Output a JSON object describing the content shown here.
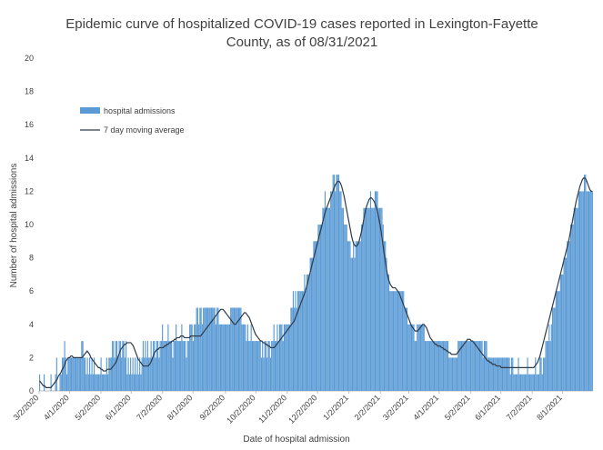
{
  "chart_data": {
    "type": "bar",
    "title_line1": "Epidemic curve of hospitalized COVID-19 cases reported in Lexington-Fayette",
    "title_line2": "County, as of 08/31/2021",
    "xlabel": "Date of hospital admission",
    "ylabel": "Number of hospital admissions",
    "ylim": [
      0,
      20
    ],
    "yticks": [
      "0",
      "2",
      "4",
      "6",
      "8",
      "10",
      "12",
      "14",
      "16",
      "18",
      "20"
    ],
    "x_start": "2020-03-02",
    "x_end": "2021-08-31",
    "xtick_labels": [
      "3/2/2020",
      "4/1/2020",
      "5/2/2020",
      "6/1/2020",
      "7/2/2020",
      "8/1/2020",
      "9/2/2020",
      "10/2/2020",
      "11/2/2020",
      "12/2/2020",
      "1/2/2021",
      "2/2/2021",
      "3/2/2021",
      "4/1/2021",
      "5/2/2021",
      "6/1/2021",
      "7/2/2021",
      "8/1/2021"
    ],
    "legend": {
      "position": "top-left",
      "bar_label": "hospital admissions",
      "line_label": "7 day moving average"
    },
    "series": [
      {
        "name": "hospital admissions",
        "kind": "bar",
        "color": "#5b9bd5",
        "values": [
          1,
          0,
          0,
          0,
          1,
          0,
          0,
          0,
          0,
          0,
          1,
          0,
          0,
          0,
          1,
          2,
          0,
          0,
          1,
          1,
          2,
          2,
          3,
          2,
          1,
          2,
          2,
          2,
          2,
          2,
          2,
          2,
          2,
          2,
          2,
          2,
          2,
          3,
          3,
          2,
          2,
          1,
          2,
          1,
          2,
          1,
          2,
          1,
          2,
          1,
          1,
          1,
          1,
          1,
          2,
          1,
          1,
          1,
          1,
          2,
          1,
          2,
          2,
          2,
          3,
          3,
          2,
          3,
          3,
          2,
          3,
          3,
          2,
          3,
          3,
          2,
          3,
          1,
          2,
          1,
          2,
          1,
          2,
          1,
          2,
          1,
          2,
          1,
          2,
          1,
          2,
          3,
          2,
          3,
          2,
          3,
          2,
          2,
          3,
          2,
          3,
          3,
          2,
          3,
          3,
          2,
          3,
          3,
          4,
          3,
          3,
          3,
          3,
          4,
          3,
          3,
          3,
          2,
          3,
          3,
          4,
          3,
          3,
          3,
          3,
          4,
          3,
          3,
          3,
          2,
          3,
          3,
          4,
          4,
          4,
          3,
          4,
          4,
          5,
          5,
          4,
          5,
          5,
          4,
          5,
          5,
          5,
          5,
          5,
          5,
          5,
          5,
          5,
          5,
          5,
          4,
          5,
          5,
          4,
          4,
          4,
          4,
          4,
          4,
          4,
          4,
          4,
          4,
          5,
          5,
          5,
          5,
          5,
          5,
          5,
          5,
          5,
          5,
          4,
          4,
          4,
          4,
          3,
          4,
          3,
          3,
          4,
          3,
          3,
          3,
          3,
          3,
          3,
          3,
          3,
          2,
          3,
          2,
          3,
          3,
          2,
          3,
          3,
          2,
          3,
          3,
          4,
          3,
          3,
          4,
          3,
          4,
          4,
          4,
          3,
          4,
          4,
          4,
          4,
          4,
          4,
          5,
          5,
          6,
          5,
          6,
          5,
          6,
          6,
          6,
          6,
          6,
          6,
          7,
          6,
          7,
          7,
          7,
          8,
          8,
          8,
          9,
          9,
          9,
          9,
          10,
          10,
          10,
          10,
          11,
          11,
          12,
          11,
          11,
          11,
          11,
          12,
          12,
          13,
          13,
          12,
          13,
          13,
          13,
          12,
          12,
          11,
          11,
          10,
          10,
          10,
          9,
          9,
          9,
          8,
          8,
          9,
          8,
          9,
          9,
          9,
          9,
          9,
          10,
          10,
          11,
          11,
          11,
          11,
          11,
          11,
          12,
          11,
          11,
          11,
          12,
          12,
          12,
          11,
          11,
          11,
          11,
          10,
          9,
          9,
          8,
          7,
          7,
          6,
          6,
          6,
          6,
          6,
          6,
          6,
          6,
          6,
          6,
          6,
          6,
          6,
          5,
          5,
          5,
          4,
          4,
          4,
          4,
          4,
          4,
          3,
          3,
          4,
          4,
          4,
          4,
          4,
          4,
          4,
          3,
          3,
          3,
          3,
          3,
          3,
          3,
          3,
          3,
          3,
          3,
          3,
          3,
          3,
          3,
          3,
          3,
          3,
          3,
          3,
          3,
          2,
          2,
          2,
          2,
          2,
          2,
          2,
          2,
          3,
          3,
          3,
          3,
          3,
          3,
          3,
          3,
          3,
          3,
          3,
          3,
          3,
          3,
          3,
          3,
          3,
          3,
          3,
          3,
          3,
          3,
          2,
          3,
          3,
          3,
          2,
          2,
          2,
          2,
          2,
          2,
          2,
          2,
          2,
          2,
          2,
          2,
          2,
          2,
          2,
          2,
          2,
          2,
          2,
          2,
          1,
          2,
          2,
          1,
          1,
          1,
          1,
          2,
          1,
          1,
          1,
          1,
          1,
          1,
          1,
          2,
          1,
          1,
          1,
          1,
          1,
          1,
          2,
          1,
          1,
          1,
          2,
          2,
          1,
          2,
          2,
          3,
          3,
          3,
          4,
          3,
          4,
          5,
          5,
          5,
          6,
          6,
          6,
          6,
          7,
          7,
          7,
          8,
          8,
          8,
          9,
          9,
          9,
          10,
          10,
          10,
          11,
          11,
          11,
          11,
          12,
          12,
          12,
          12,
          12,
          13,
          13,
          12,
          12,
          12,
          12,
          12,
          12
        ]
      },
      {
        "name": "7 day moving average",
        "kind": "line",
        "color": "#2f3a4a",
        "values": [
          0.6,
          0.5,
          0.4,
          0.3,
          0.3,
          0.2,
          0.2,
          0.2,
          0.2,
          0.2,
          0.3,
          0.4,
          0.5,
          0.6,
          0.7,
          0.9,
          1.0,
          1.1,
          1.3,
          1.4,
          1.6,
          1.8,
          1.9,
          2.0,
          2.0,
          2.1,
          2.1,
          2.0,
          2.0,
          2.0,
          2.0,
          2.0,
          2.0,
          2.0,
          2.0,
          2.1,
          2.2,
          2.3,
          2.4,
          2.3,
          2.2,
          2.0,
          1.9,
          1.8,
          1.7,
          1.6,
          1.5,
          1.4,
          1.4,
          1.3,
          1.3,
          1.2,
          1.2,
          1.2,
          1.3,
          1.3,
          1.3,
          1.3,
          1.4,
          1.5,
          1.6,
          1.7,
          1.9,
          2.1,
          2.3,
          2.5,
          2.6,
          2.7,
          2.8,
          2.8,
          2.9,
          2.9,
          2.9,
          2.9,
          2.8,
          2.7,
          2.5,
          2.3,
          2.1,
          1.9,
          1.8,
          1.7,
          1.6,
          1.5,
          1.5,
          1.5,
          1.5,
          1.5,
          1.6,
          1.7,
          1.9,
          2.1,
          2.3,
          2.4,
          2.5,
          2.5,
          2.6,
          2.6,
          2.6,
          2.6,
          2.7,
          2.7,
          2.8,
          2.8,
          2.9,
          2.9,
          3.0,
          3.0,
          3.1,
          3.1,
          3.2,
          3.2,
          3.2,
          3.3,
          3.3,
          3.3,
          3.2,
          3.2,
          3.2,
          3.2,
          3.2,
          3.3,
          3.3,
          3.3,
          3.3,
          3.3,
          3.3,
          3.3,
          3.3,
          3.3,
          3.4,
          3.5,
          3.6,
          3.7,
          3.8,
          3.9,
          4.0,
          4.1,
          4.2,
          4.3,
          4.4,
          4.5,
          4.6,
          4.7,
          4.8,
          4.9,
          4.9,
          4.9,
          4.8,
          4.7,
          4.6,
          4.5,
          4.4,
          4.3,
          4.2,
          4.1,
          4.0,
          4.0,
          4.1,
          4.2,
          4.3,
          4.4,
          4.5,
          4.6,
          4.7,
          4.7,
          4.6,
          4.5,
          4.4,
          4.2,
          4.0,
          3.8,
          3.6,
          3.4,
          3.3,
          3.2,
          3.1,
          3.0,
          3.0,
          2.9,
          2.9,
          2.8,
          2.8,
          2.7,
          2.7,
          2.6,
          2.6,
          2.6,
          2.6,
          2.7,
          2.8,
          2.9,
          3.0,
          3.1,
          3.2,
          3.3,
          3.4,
          3.5,
          3.6,
          3.7,
          3.8,
          3.9,
          4.0,
          4.1,
          4.2,
          4.4,
          4.6,
          4.8,
          5.0,
          5.2,
          5.4,
          5.6,
          5.8,
          6.0,
          6.3,
          6.6,
          6.9,
          7.2,
          7.5,
          7.8,
          8.1,
          8.4,
          8.7,
          9.0,
          9.3,
          9.6,
          9.9,
          10.2,
          10.5,
          10.8,
          11.0,
          11.2,
          11.4,
          11.6,
          11.8,
          12.0,
          12.2,
          12.4,
          12.5,
          12.6,
          12.6,
          12.5,
          12.3,
          12.0,
          11.7,
          11.3,
          10.9,
          10.5,
          10.1,
          9.7,
          9.3,
          9.0,
          8.8,
          8.7,
          8.7,
          8.8,
          9.0,
          9.3,
          9.6,
          10.0,
          10.4,
          10.8,
          11.1,
          11.3,
          11.5,
          11.6,
          11.6,
          11.5,
          11.4,
          11.2,
          11.0,
          10.7,
          10.3,
          9.9,
          9.4,
          8.9,
          8.3,
          7.8,
          7.3,
          6.9,
          6.6,
          6.4,
          6.3,
          6.2,
          6.2,
          6.2,
          6.1,
          6.0,
          5.9,
          5.7,
          5.5,
          5.3,
          5.1,
          4.9,
          4.7,
          4.5,
          4.3,
          4.1,
          3.9,
          3.8,
          3.7,
          3.6,
          3.6,
          3.6,
          3.7,
          3.8,
          3.9,
          4.0,
          4.0,
          3.9,
          3.8,
          3.6,
          3.4,
          3.2,
          3.1,
          3.0,
          2.9,
          2.8,
          2.8,
          2.7,
          2.7,
          2.7,
          2.6,
          2.6,
          2.5,
          2.5,
          2.4,
          2.4,
          2.3,
          2.3,
          2.2,
          2.2,
          2.2,
          2.2,
          2.2,
          2.3,
          2.4,
          2.5,
          2.6,
          2.7,
          2.8,
          2.9,
          3.0,
          3.1,
          3.1,
          3.1,
          3.0,
          3.0,
          2.9,
          2.8,
          2.7,
          2.6,
          2.5,
          2.4,
          2.3,
          2.2,
          2.1,
          2.0,
          1.9,
          1.8,
          1.8,
          1.7,
          1.7,
          1.6,
          1.6,
          1.6,
          1.5,
          1.5,
          1.5,
          1.5,
          1.4,
          1.4,
          1.4,
          1.4,
          1.4,
          1.4,
          1.4,
          1.4,
          1.4,
          1.4,
          1.4,
          1.4,
          1.4,
          1.4,
          1.4,
          1.4,
          1.4,
          1.4,
          1.4,
          1.4,
          1.4,
          1.4,
          1.4,
          1.4,
          1.4,
          1.4,
          1.4,
          1.5,
          1.6,
          1.7,
          1.9,
          2.1,
          2.4,
          2.7,
          3.0,
          3.3,
          3.6,
          3.9,
          4.2,
          4.5,
          4.8,
          5.1,
          5.4,
          5.7,
          6.0,
          6.3,
          6.6,
          6.9,
          7.2,
          7.5,
          7.8,
          8.1,
          8.4,
          8.7,
          9.0,
          9.4,
          9.8,
          10.2,
          10.6,
          11.0,
          11.4,
          11.7,
          12.0,
          12.3,
          12.5,
          12.7,
          12.8,
          12.8,
          12.7,
          12.5,
          12.3,
          12.1,
          12.0,
          12.0
        ]
      }
    ]
  }
}
